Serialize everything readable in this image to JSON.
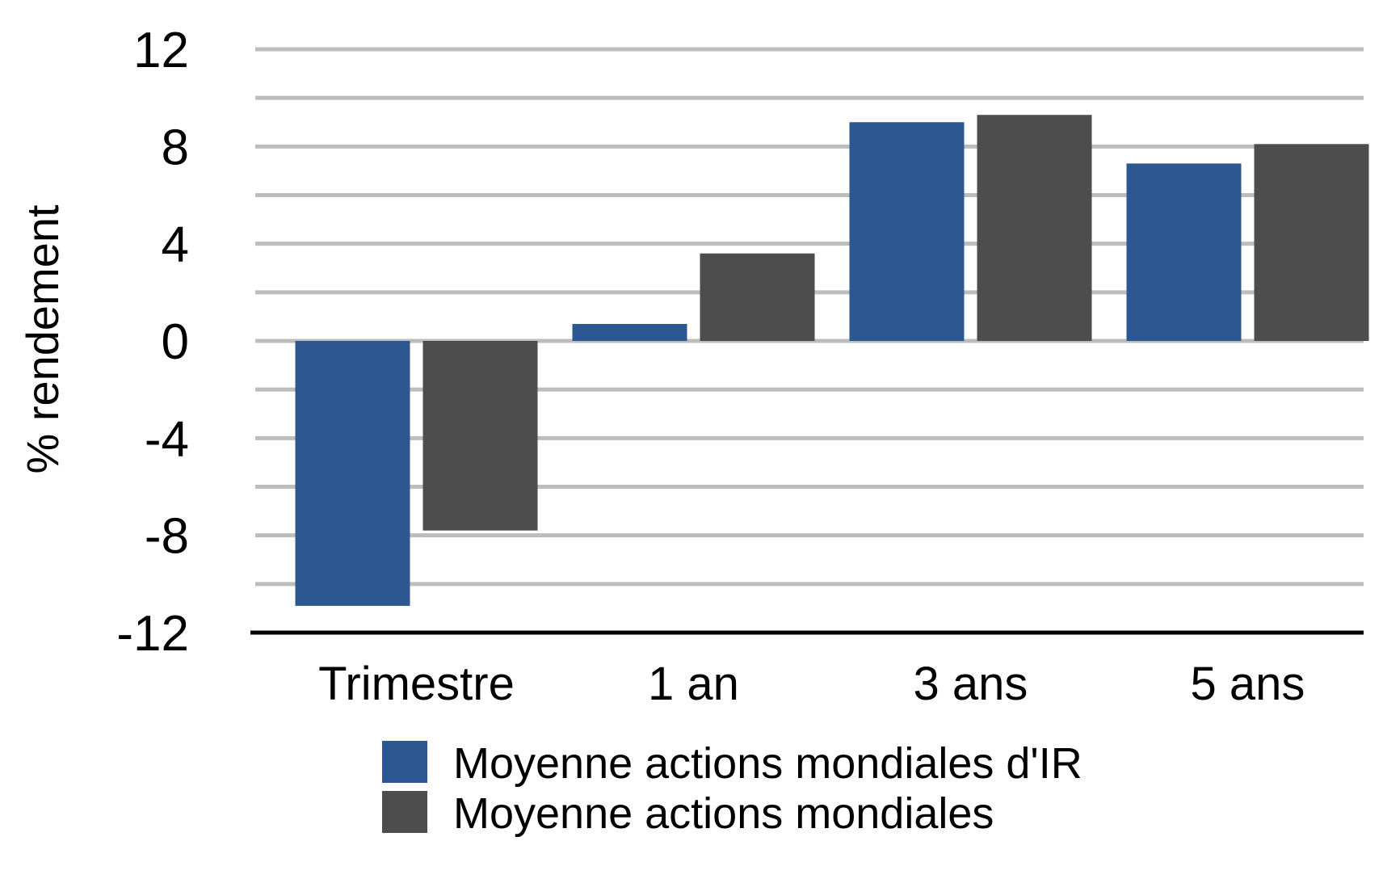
{
  "chart_data": {
    "type": "bar",
    "title": "",
    "xlabel": "",
    "ylabel": "% rendement",
    "ylim": [
      -12,
      12
    ],
    "yticks": [
      12,
      8,
      4,
      0,
      -4,
      -8,
      -12
    ],
    "grid": true,
    "legend_position": "bottom",
    "categories": [
      "Trimestre",
      "1 an",
      "3 ans",
      "5 ans"
    ],
    "series": [
      {
        "name": "Moyenne actions mondiales d'IR",
        "color": "#2d5791",
        "values": [
          -10.9,
          0.7,
          9.0,
          7.3
        ]
      },
      {
        "name": "Moyenne actions mondiales",
        "color": "#4d4d4d",
        "values": [
          -7.8,
          3.6,
          9.3,
          8.1
        ]
      }
    ]
  }
}
